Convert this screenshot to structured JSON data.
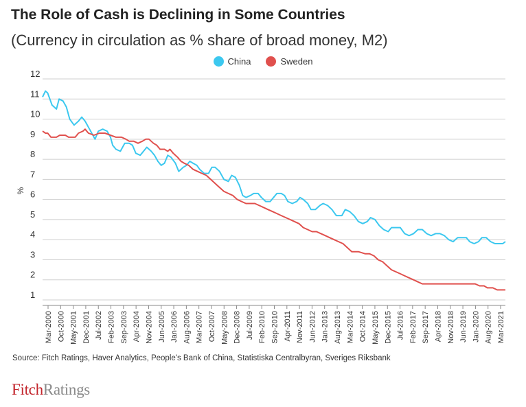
{
  "title": "The Role of Cash is Declining in Some Countries",
  "subtitle": "(Currency in circulation as % share of broad money, M2)",
  "source": "Source: Fitch Ratings, Haver Analytics, People's Bank of China, Statistiska Centralbyran, Sveriges Riksbank",
  "logo": {
    "part1": "Fitch",
    "part2": "Ratings"
  },
  "chart_data": {
    "type": "line",
    "title": "The Role of Cash is Declining in Some Countries",
    "subtitle": "(Currency in circulation as % share of broad money, M2)",
    "ylabel": "%",
    "xlabel": "",
    "ylim": [
      1,
      12
    ],
    "yticks": [
      1,
      2,
      3,
      4,
      5,
      6,
      7,
      8,
      9,
      10,
      11,
      12
    ],
    "x_range_years": [
      2000.17,
      2021.17
    ],
    "xtick_labels": [
      "Mar-2000",
      "Oct-2000",
      "May-2001",
      "Dec-2001",
      "Jul-2002",
      "Feb-2003",
      "Sep-2003",
      "Apr-2004",
      "Nov-2004",
      "Jun-2005",
      "Jan-2006",
      "Aug-2006",
      "Mar-2007",
      "Oct-2007",
      "May-2008",
      "Dec-2008",
      "Jul-2009",
      "Feb-2010",
      "Sep-2010",
      "Apr-2011",
      "Nov-2011",
      "Jun-2012",
      "Jan-2013",
      "Aug-2013",
      "Mar-2014",
      "Oct-2014",
      "May-2015",
      "Dec-2015",
      "Jul-2016",
      "Feb-2017",
      "Sep-2017",
      "Apr-2018",
      "Nov-2018",
      "Jun-2019",
      "Jan-2020",
      "Aug-2020",
      "Mar-2021"
    ],
    "grid": "horizontal",
    "legend_position": "top-center",
    "colors": {
      "China": "#3cc8ef",
      "Sweden": "#e0504d"
    },
    "series": [
      {
        "name": "China",
        "points": [
          [
            2000.17,
            11.1
          ],
          [
            2000.3,
            11.4
          ],
          [
            2000.4,
            11.3
          ],
          [
            2000.5,
            11.0
          ],
          [
            2000.6,
            10.7
          ],
          [
            2000.8,
            10.5
          ],
          [
            2000.92,
            11.0
          ],
          [
            2001.1,
            10.9
          ],
          [
            2001.25,
            10.6
          ],
          [
            2001.4,
            10.0
          ],
          [
            2001.6,
            9.7
          ],
          [
            2001.8,
            9.9
          ],
          [
            2001.95,
            10.1
          ],
          [
            2002.1,
            9.9
          ],
          [
            2002.25,
            9.6
          ],
          [
            2002.4,
            9.3
          ],
          [
            2002.55,
            9.0
          ],
          [
            2002.7,
            9.4
          ],
          [
            2002.9,
            9.5
          ],
          [
            2003.1,
            9.4
          ],
          [
            2003.25,
            9.1
          ],
          [
            2003.35,
            8.7
          ],
          [
            2003.5,
            8.5
          ],
          [
            2003.7,
            8.4
          ],
          [
            2003.9,
            8.8
          ],
          [
            2004.1,
            8.8
          ],
          [
            2004.25,
            8.7
          ],
          [
            2004.4,
            8.3
          ],
          [
            2004.6,
            8.2
          ],
          [
            2004.75,
            8.4
          ],
          [
            2004.9,
            8.6
          ],
          [
            2005.1,
            8.4
          ],
          [
            2005.25,
            8.2
          ],
          [
            2005.4,
            7.9
          ],
          [
            2005.55,
            7.7
          ],
          [
            2005.7,
            7.8
          ],
          [
            2005.85,
            8.2
          ],
          [
            2006.0,
            8.1
          ],
          [
            2006.2,
            7.8
          ],
          [
            2006.35,
            7.4
          ],
          [
            2006.45,
            7.5
          ],
          [
            2006.55,
            7.6
          ],
          [
            2006.7,
            7.7
          ],
          [
            2006.85,
            7.9
          ],
          [
            2007.0,
            7.8
          ],
          [
            2007.17,
            7.7
          ],
          [
            2007.3,
            7.5
          ],
          [
            2007.5,
            7.3
          ],
          [
            2007.7,
            7.3
          ],
          [
            2007.85,
            7.6
          ],
          [
            2008.0,
            7.6
          ],
          [
            2008.2,
            7.4
          ],
          [
            2008.4,
            7.0
          ],
          [
            2008.6,
            6.9
          ],
          [
            2008.75,
            7.2
          ],
          [
            2008.92,
            7.1
          ],
          [
            2009.1,
            6.7
          ],
          [
            2009.25,
            6.2
          ],
          [
            2009.4,
            6.1
          ],
          [
            2009.6,
            6.2
          ],
          [
            2009.75,
            6.3
          ],
          [
            2009.95,
            6.3
          ],
          [
            2010.1,
            6.1
          ],
          [
            2010.3,
            5.9
          ],
          [
            2010.5,
            5.9
          ],
          [
            2010.65,
            6.1
          ],
          [
            2010.8,
            6.3
          ],
          [
            2011.0,
            6.3
          ],
          [
            2011.15,
            6.2
          ],
          [
            2011.3,
            5.9
          ],
          [
            2011.5,
            5.8
          ],
          [
            2011.7,
            5.9
          ],
          [
            2011.85,
            6.1
          ],
          [
            2012.0,
            6.0
          ],
          [
            2012.2,
            5.8
          ],
          [
            2012.35,
            5.5
          ],
          [
            2012.55,
            5.5
          ],
          [
            2012.75,
            5.7
          ],
          [
            2012.9,
            5.8
          ],
          [
            2013.1,
            5.7
          ],
          [
            2013.3,
            5.5
          ],
          [
            2013.5,
            5.2
          ],
          [
            2013.75,
            5.2
          ],
          [
            2013.9,
            5.5
          ],
          [
            2014.1,
            5.4
          ],
          [
            2014.3,
            5.2
          ],
          [
            2014.5,
            4.9
          ],
          [
            2014.7,
            4.8
          ],
          [
            2014.9,
            4.9
          ],
          [
            2015.05,
            5.1
          ],
          [
            2015.25,
            5.0
          ],
          [
            2015.45,
            4.7
          ],
          [
            2015.65,
            4.5
          ],
          [
            2015.85,
            4.4
          ],
          [
            2016.0,
            4.6
          ],
          [
            2016.2,
            4.6
          ],
          [
            2016.4,
            4.6
          ],
          [
            2016.6,
            4.3
          ],
          [
            2016.8,
            4.2
          ],
          [
            2017.0,
            4.3
          ],
          [
            2017.2,
            4.5
          ],
          [
            2017.4,
            4.5
          ],
          [
            2017.6,
            4.3
          ],
          [
            2017.8,
            4.2
          ],
          [
            2018.0,
            4.3
          ],
          [
            2018.2,
            4.3
          ],
          [
            2018.4,
            4.2
          ],
          [
            2018.6,
            4.0
          ],
          [
            2018.8,
            3.9
          ],
          [
            2019.0,
            4.1
          ],
          [
            2019.2,
            4.1
          ],
          [
            2019.4,
            4.1
          ],
          [
            2019.55,
            3.9
          ],
          [
            2019.75,
            3.8
          ],
          [
            2019.95,
            3.9
          ],
          [
            2020.1,
            4.1
          ],
          [
            2020.3,
            4.1
          ],
          [
            2020.5,
            3.9
          ],
          [
            2020.7,
            3.8
          ],
          [
            2020.9,
            3.8
          ],
          [
            2021.05,
            3.8
          ],
          [
            2021.17,
            3.9
          ]
        ]
      },
      {
        "name": "Sweden",
        "points": [
          [
            2000.17,
            9.4
          ],
          [
            2000.3,
            9.3
          ],
          [
            2000.4,
            9.3
          ],
          [
            2000.55,
            9.1
          ],
          [
            2000.8,
            9.1
          ],
          [
            2000.95,
            9.2
          ],
          [
            2001.2,
            9.2
          ],
          [
            2001.35,
            9.1
          ],
          [
            2001.65,
            9.1
          ],
          [
            2001.8,
            9.3
          ],
          [
            2002.0,
            9.4
          ],
          [
            2002.1,
            9.5
          ],
          [
            2002.25,
            9.3
          ],
          [
            2002.5,
            9.2
          ],
          [
            2002.75,
            9.3
          ],
          [
            2003.0,
            9.3
          ],
          [
            2003.25,
            9.2
          ],
          [
            2003.5,
            9.1
          ],
          [
            2003.75,
            9.1
          ],
          [
            2003.95,
            9.0
          ],
          [
            2004.1,
            8.9
          ],
          [
            2004.3,
            8.9
          ],
          [
            2004.5,
            8.8
          ],
          [
            2004.7,
            8.9
          ],
          [
            2004.85,
            9.0
          ],
          [
            2005.0,
            9.0
          ],
          [
            2005.2,
            8.8
          ],
          [
            2005.35,
            8.7
          ],
          [
            2005.5,
            8.5
          ],
          [
            2005.7,
            8.5
          ],
          [
            2005.85,
            8.4
          ],
          [
            2005.95,
            8.5
          ],
          [
            2006.1,
            8.3
          ],
          [
            2006.3,
            8.1
          ],
          [
            2006.45,
            7.9
          ],
          [
            2006.6,
            7.8
          ],
          [
            2006.8,
            7.7
          ],
          [
            2007.0,
            7.5
          ],
          [
            2007.2,
            7.4
          ],
          [
            2007.4,
            7.3
          ],
          [
            2007.6,
            7.2
          ],
          [
            2007.8,
            7.0
          ],
          [
            2008.0,
            6.8
          ],
          [
            2008.2,
            6.6
          ],
          [
            2008.4,
            6.4
          ],
          [
            2008.6,
            6.3
          ],
          [
            2008.8,
            6.2
          ],
          [
            2009.0,
            6.0
          ],
          [
            2009.2,
            5.9
          ],
          [
            2009.4,
            5.8
          ],
          [
            2009.6,
            5.8
          ],
          [
            2009.8,
            5.8
          ],
          [
            2010.0,
            5.7
          ],
          [
            2010.2,
            5.6
          ],
          [
            2010.4,
            5.5
          ],
          [
            2010.6,
            5.4
          ],
          [
            2010.8,
            5.3
          ],
          [
            2011.0,
            5.2
          ],
          [
            2011.2,
            5.1
          ],
          [
            2011.4,
            5.0
          ],
          [
            2011.6,
            4.9
          ],
          [
            2011.8,
            4.8
          ],
          [
            2012.0,
            4.6
          ],
          [
            2012.2,
            4.5
          ],
          [
            2012.4,
            4.4
          ],
          [
            2012.6,
            4.4
          ],
          [
            2012.8,
            4.3
          ],
          [
            2013.0,
            4.2
          ],
          [
            2013.2,
            4.1
          ],
          [
            2013.4,
            4.0
          ],
          [
            2013.6,
            3.9
          ],
          [
            2013.8,
            3.8
          ],
          [
            2014.0,
            3.6
          ],
          [
            2014.2,
            3.4
          ],
          [
            2014.5,
            3.4
          ],
          [
            2014.8,
            3.3
          ],
          [
            2015.0,
            3.3
          ],
          [
            2015.2,
            3.2
          ],
          [
            2015.4,
            3.0
          ],
          [
            2015.6,
            2.9
          ],
          [
            2015.8,
            2.7
          ],
          [
            2016.0,
            2.5
          ],
          [
            2016.2,
            2.4
          ],
          [
            2016.4,
            2.3
          ],
          [
            2016.6,
            2.2
          ],
          [
            2016.8,
            2.1
          ],
          [
            2017.0,
            2.0
          ],
          [
            2017.2,
            1.9
          ],
          [
            2017.4,
            1.8
          ],
          [
            2017.6,
            1.8
          ],
          [
            2018.0,
            1.8
          ],
          [
            2018.5,
            1.8
          ],
          [
            2019.0,
            1.8
          ],
          [
            2019.5,
            1.8
          ],
          [
            2019.8,
            1.8
          ],
          [
            2020.0,
            1.7
          ],
          [
            2020.2,
            1.7
          ],
          [
            2020.35,
            1.6
          ],
          [
            2020.6,
            1.6
          ],
          [
            2020.8,
            1.5
          ],
          [
            2021.17,
            1.5
          ]
        ]
      }
    ]
  }
}
